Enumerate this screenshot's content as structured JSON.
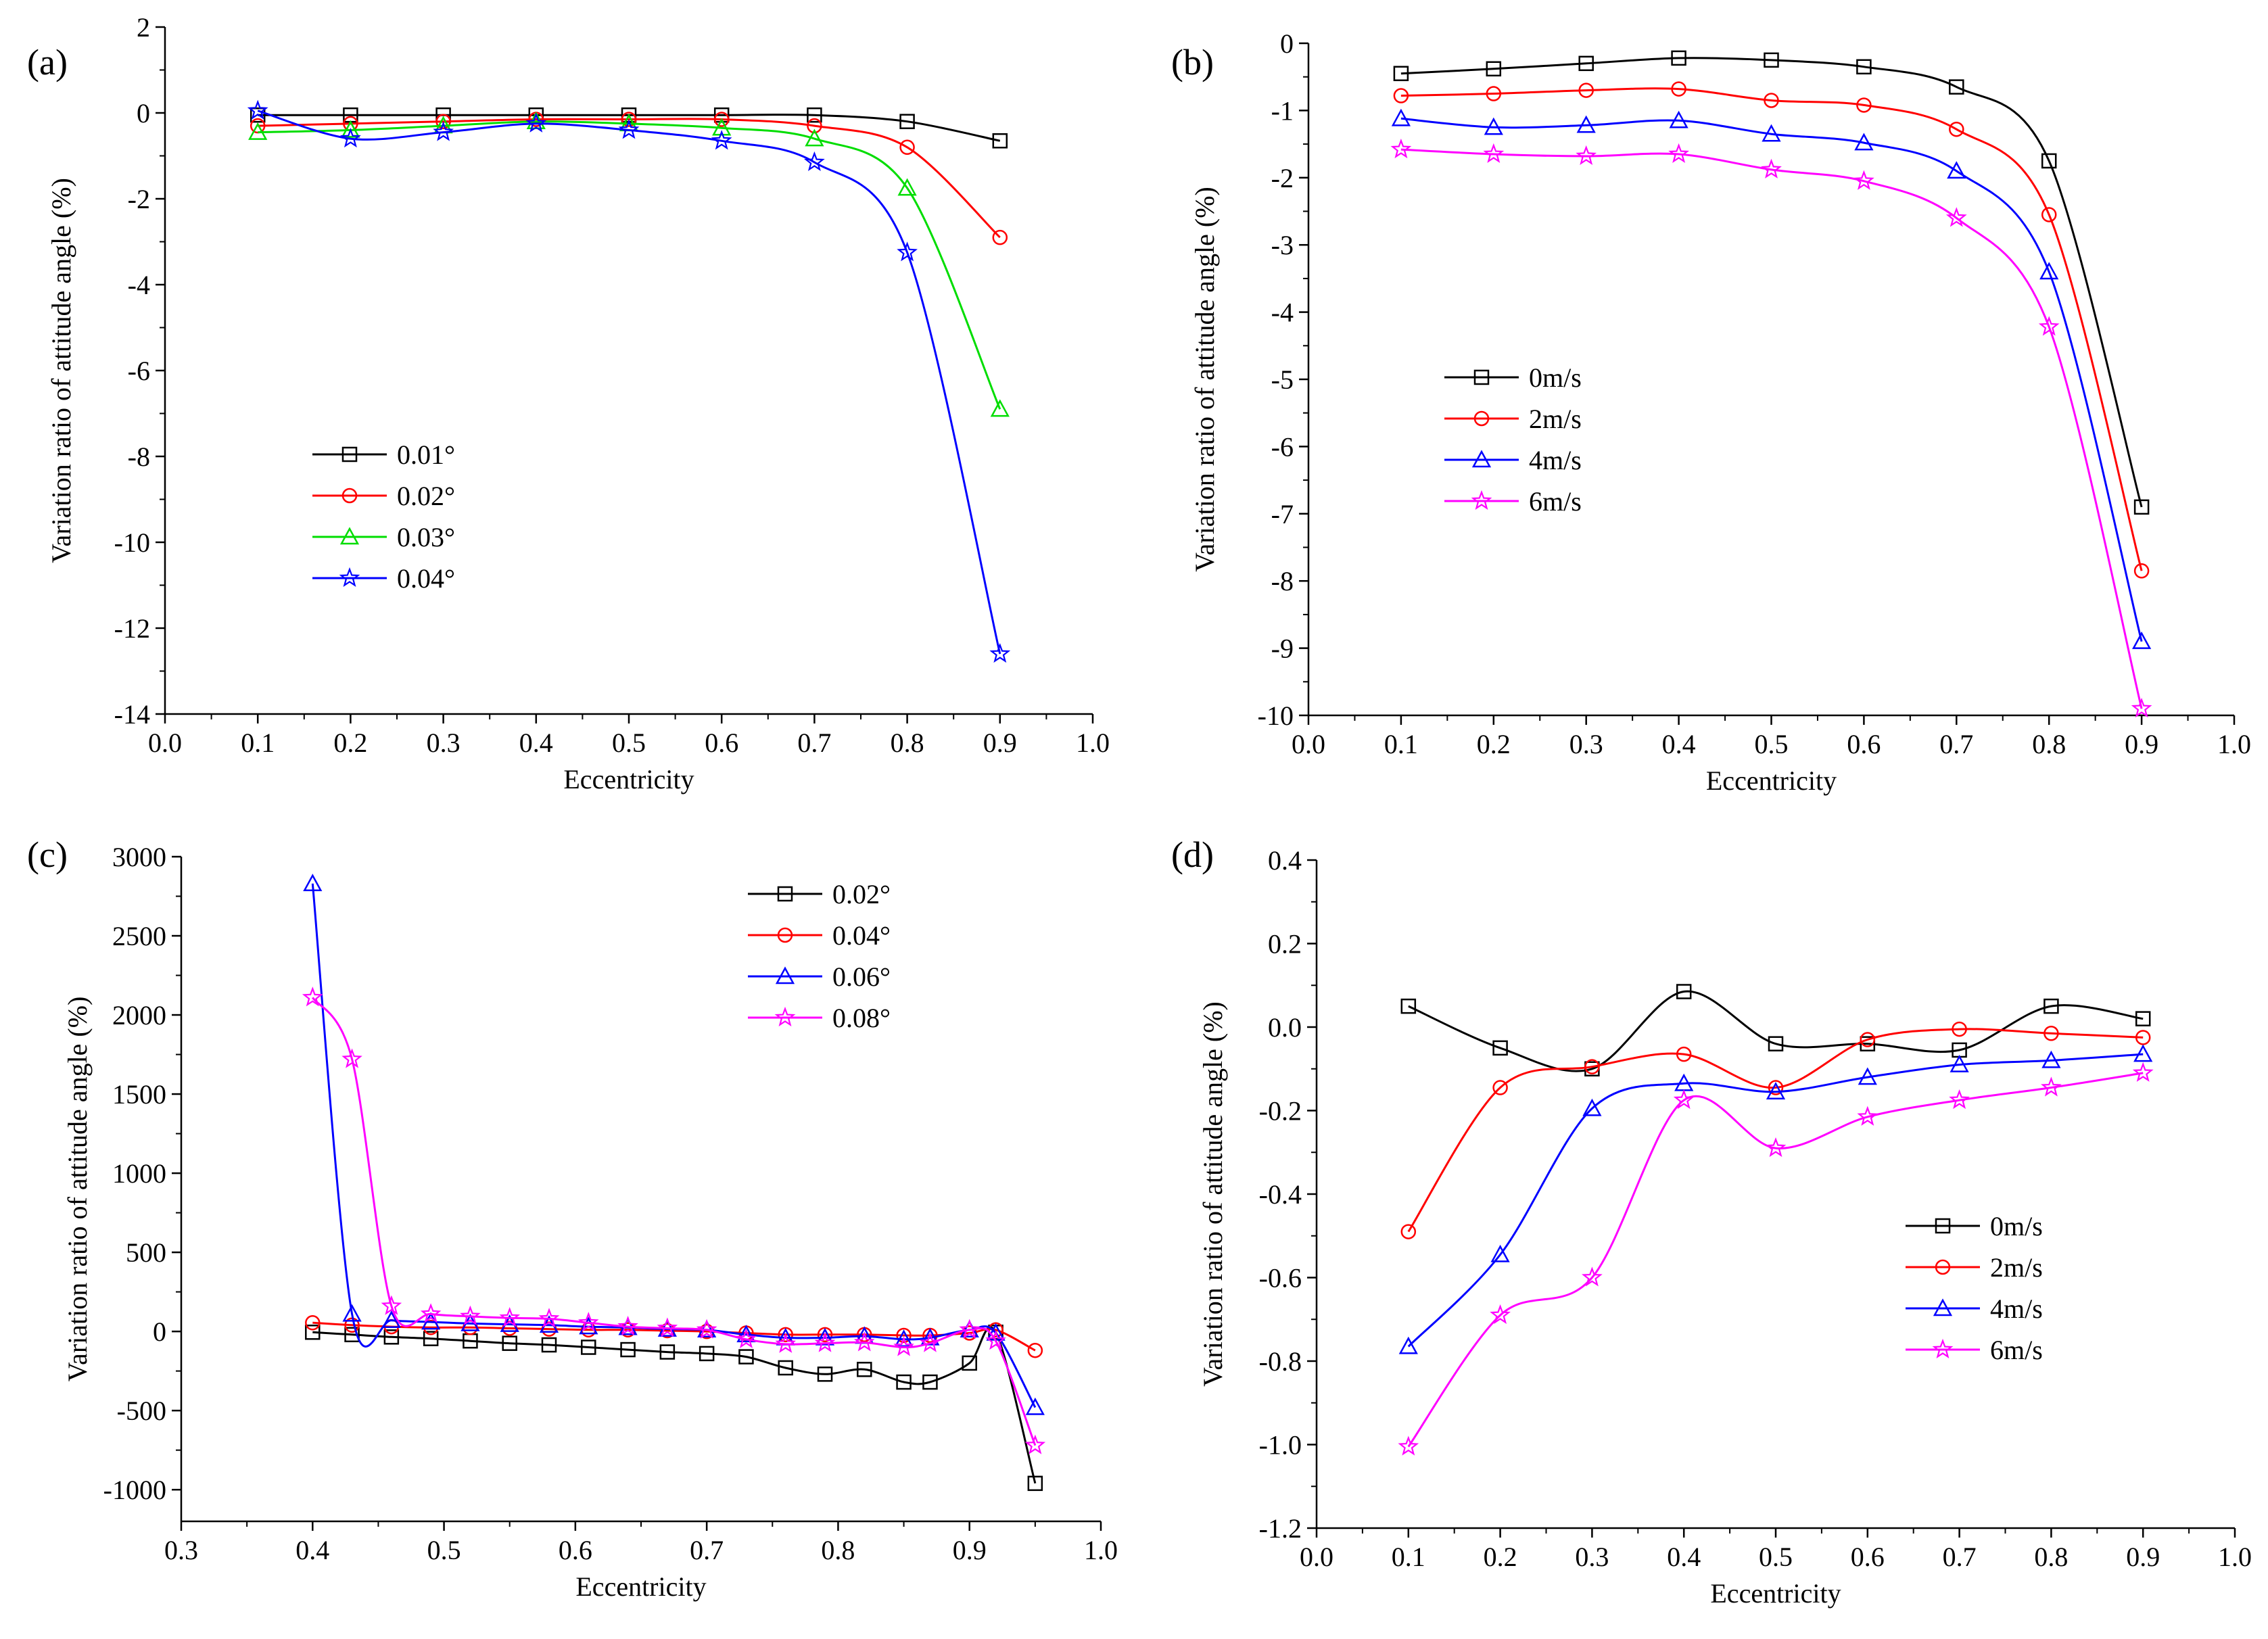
{
  "chart_data": [
    {
      "panel": "(a)",
      "type": "line",
      "xlabel": "Eccentricity",
      "ylabel": "Variation ratio of attitude angle (%)",
      "xlim": [
        0.0,
        1.0
      ],
      "ylim": [
        -14,
        2
      ],
      "xticks": [
        0.0,
        0.1,
        0.2,
        0.3,
        0.4,
        0.5,
        0.6,
        0.7,
        0.8,
        0.9,
        1.0
      ],
      "yticks": [
        -14,
        -12,
        -10,
        -8,
        -6,
        -4,
        -2,
        0,
        2
      ],
      "legend_position": "middle-left",
      "x": [
        0.1,
        0.2,
        0.3,
        0.4,
        0.5,
        0.6,
        0.7,
        0.8,
        0.9
      ],
      "series": [
        {
          "name": "0.01°",
          "color": "#000000",
          "marker": "square",
          "values": [
            -0.05,
            -0.05,
            -0.05,
            -0.05,
            -0.05,
            -0.05,
            -0.05,
            -0.2,
            -0.65
          ]
        },
        {
          "name": "0.02°",
          "color": "#ff0000",
          "marker": "circle",
          "values": [
            -0.3,
            -0.25,
            -0.2,
            -0.15,
            -0.15,
            -0.15,
            -0.3,
            -0.8,
            -2.9
          ]
        },
        {
          "name": "0.03°",
          "color": "#00dd00",
          "marker": "triangle",
          "values": [
            -0.45,
            -0.4,
            -0.3,
            -0.2,
            -0.25,
            -0.35,
            -0.6,
            -1.75,
            -6.9
          ]
        },
        {
          "name": "0.04°",
          "color": "#0000ff",
          "marker": "star",
          "values": [
            0.05,
            -0.6,
            -0.45,
            -0.25,
            -0.4,
            -0.65,
            -1.15,
            -3.25,
            -12.6
          ]
        }
      ]
    },
    {
      "panel": "(b)",
      "type": "line",
      "xlabel": "Eccentricity",
      "ylabel": "Variation ratio of attitude angle (%)",
      "xlim": [
        0.0,
        1.0
      ],
      "ylim": [
        -10,
        0
      ],
      "xticks": [
        0.0,
        0.1,
        0.2,
        0.3,
        0.4,
        0.5,
        0.6,
        0.7,
        0.8,
        0.9,
        1.0
      ],
      "yticks": [
        -10,
        -9,
        -8,
        -7,
        -6,
        -5,
        -4,
        -3,
        -2,
        -1,
        0
      ],
      "legend_position": "middle-left",
      "x": [
        0.1,
        0.2,
        0.3,
        0.4,
        0.5,
        0.6,
        0.7,
        0.8,
        0.9
      ],
      "series": [
        {
          "name": "0m/s",
          "color": "#000000",
          "marker": "square",
          "values": [
            -0.45,
            -0.38,
            -0.3,
            -0.22,
            -0.25,
            -0.35,
            -0.65,
            -1.75,
            -6.9
          ]
        },
        {
          "name": "2m/s",
          "color": "#ff0000",
          "marker": "circle",
          "values": [
            -0.78,
            -0.75,
            -0.7,
            -0.68,
            -0.85,
            -0.92,
            -1.28,
            -2.55,
            -7.85
          ]
        },
        {
          "name": "4m/s",
          "color": "#0000ff",
          "marker": "triangle",
          "values": [
            -1.12,
            -1.25,
            -1.22,
            -1.15,
            -1.35,
            -1.48,
            -1.9,
            -3.4,
            -8.9
          ]
        },
        {
          "name": "6m/s",
          "color": "#ff00ff",
          "marker": "star",
          "values": [
            -1.58,
            -1.65,
            -1.68,
            -1.65,
            -1.88,
            -2.05,
            -2.6,
            -4.22,
            -9.9
          ]
        }
      ]
    },
    {
      "panel": "(c)",
      "type": "line",
      "xlabel": "Eccentricity",
      "ylabel": "Variation ratio of attitude angle (%)",
      "xlim": [
        0.3,
        1.0
      ],
      "ylim": [
        -1200,
        3000
      ],
      "xticks": [
        0.3,
        0.4,
        0.5,
        0.6,
        0.7,
        0.8,
        0.9,
        1.0
      ],
      "yticks": [
        -1000,
        -500,
        0,
        500,
        1000,
        1500,
        2000,
        2500,
        3000
      ],
      "legend_position": "top-right",
      "x": [
        0.4,
        0.43,
        0.46,
        0.49,
        0.52,
        0.55,
        0.58,
        0.61,
        0.64,
        0.67,
        0.7,
        0.73,
        0.76,
        0.79,
        0.82,
        0.85,
        0.87,
        0.9,
        0.92,
        0.95
      ],
      "series": [
        {
          "name": "0.02°",
          "color": "#000000",
          "marker": "square",
          "values": [
            -5,
            -20,
            -35,
            -45,
            -60,
            -75,
            -85,
            -100,
            -115,
            -130,
            -140,
            -160,
            -230,
            -270,
            -240,
            -320,
            -320,
            -200,
            -5,
            -960
          ]
        },
        {
          "name": "0.04°",
          "color": "#ff0000",
          "marker": "circle",
          "values": [
            55,
            40,
            30,
            25,
            25,
            20,
            15,
            10,
            10,
            5,
            0,
            -10,
            -20,
            -20,
            -20,
            -25,
            -25,
            -10,
            10,
            -120
          ]
        },
        {
          "name": "0.06°",
          "color": "#0000ff",
          "marker": "triangle",
          "values": [
            2830,
            110,
            70,
            60,
            50,
            45,
            40,
            30,
            25,
            15,
            10,
            -20,
            -40,
            -40,
            -30,
            -50,
            -40,
            10,
            -10,
            -480
          ]
        },
        {
          "name": "0.08°",
          "color": "#ff00ff",
          "marker": "star",
          "values": [
            2110,
            1720,
            160,
            110,
            95,
            85,
            80,
            55,
            30,
            20,
            10,
            -50,
            -80,
            -75,
            -70,
            -100,
            -75,
            10,
            -60,
            -720
          ]
        }
      ]
    },
    {
      "panel": "(d)",
      "type": "line",
      "xlabel": "Eccentricity",
      "ylabel": "Variation ratio of attitude angle (%)",
      "xlim": [
        0.0,
        1.0
      ],
      "ylim": [
        -1.2,
        0.4
      ],
      "xticks": [
        0.0,
        0.1,
        0.2,
        0.3,
        0.4,
        0.5,
        0.6,
        0.7,
        0.8,
        0.9,
        1.0
      ],
      "yticks": [
        -1.2,
        -1.0,
        -0.8,
        -0.6,
        -0.4,
        -0.2,
        0.0,
        0.2,
        0.4
      ],
      "legend_position": "bottom-right",
      "x": [
        0.1,
        0.2,
        0.3,
        0.4,
        0.5,
        0.6,
        0.7,
        0.8,
        0.9
      ],
      "series": [
        {
          "name": "0m/s",
          "color": "#000000",
          "marker": "square",
          "values": [
            0.05,
            -0.05,
            -0.1,
            0.085,
            -0.04,
            -0.04,
            -0.055,
            0.05,
            0.02
          ]
        },
        {
          "name": "2m/s",
          "color": "#ff0000",
          "marker": "circle",
          "values": [
            -0.49,
            -0.145,
            -0.095,
            -0.065,
            -0.145,
            -0.03,
            -0.005,
            -0.015,
            -0.025
          ]
        },
        {
          "name": "4m/s",
          "color": "#0000ff",
          "marker": "triangle",
          "values": [
            -0.765,
            -0.545,
            -0.195,
            -0.135,
            -0.155,
            -0.12,
            -0.09,
            -0.08,
            -0.065
          ]
        },
        {
          "name": "6m/s",
          "color": "#ff00ff",
          "marker": "star",
          "values": [
            -1.005,
            -0.69,
            -0.6,
            -0.175,
            -0.29,
            -0.215,
            -0.175,
            -0.145,
            -0.11
          ]
        }
      ]
    }
  ]
}
